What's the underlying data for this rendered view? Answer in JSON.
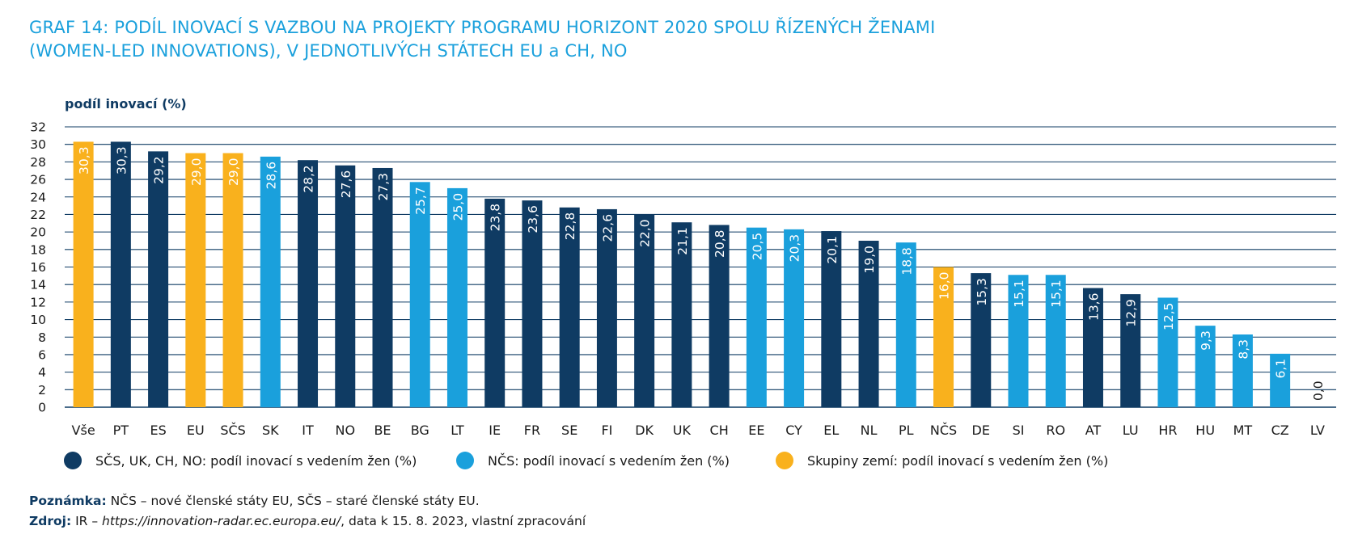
{
  "title_line1": "GRAF 14: PODÍL INOVACÍ S VAZBOU NA PROJEKTY PROGRAMU HORIZONT 2020 SPOLU ŘÍZENÝCH ŽENAMI",
  "title_line2": "(WOMEN-LED INNOVATIONS), V JEDNOTLIVÝCH STÁTECH EU a CH, NO",
  "colors": {
    "dark": "#0f3b63",
    "light": "#1aa0dc",
    "orange": "#f9b11d",
    "title": "#1aa0dc"
  },
  "chart_data": {
    "type": "bar",
    "ylabel": "podíl inovací (%)",
    "ylim": [
      0,
      32
    ],
    "ytick_step": 2,
    "grid": true,
    "legend_position": "bottom",
    "categories": [
      "Vše",
      "PT",
      "ES",
      "EU",
      "SČS",
      "SK",
      "IT",
      "NO",
      "BE",
      "BG",
      "LT",
      "IE",
      "FR",
      "SE",
      "FI",
      "DK",
      "UK",
      "CH",
      "EE",
      "CY",
      "EL",
      "NL",
      "PL",
      "NČS",
      "DE",
      "SI",
      "RO",
      "AT",
      "LU",
      "HR",
      "HU",
      "MT",
      "CZ",
      "LV"
    ],
    "values": [
      30.3,
      30.3,
      29.2,
      29.0,
      29.0,
      28.6,
      28.2,
      27.6,
      27.3,
      25.7,
      25.0,
      23.8,
      23.6,
      22.8,
      22.6,
      22.0,
      21.1,
      20.8,
      20.5,
      20.3,
      20.1,
      19.0,
      18.8,
      16.0,
      15.3,
      15.1,
      15.1,
      13.6,
      12.9,
      12.5,
      9.3,
      8.3,
      6.1,
      0.0
    ],
    "value_labels": [
      "30,3",
      "30,3",
      "29,2",
      "29,0",
      "29,0",
      "28,6",
      "28,2",
      "27,6",
      "27,3",
      "25,7",
      "25,0",
      "23,8",
      "23,6",
      "22,8",
      "22,6",
      "22,0",
      "21,1",
      "20,8",
      "20,5",
      "20,3",
      "20,1",
      "19,0",
      "18,8",
      "16,0",
      "15,3",
      "15,1",
      "15,1",
      "13,6",
      "12,9",
      "12,5",
      "9,3",
      "8,3",
      "6,1",
      "0,0"
    ],
    "groups": [
      "orange",
      "dark",
      "dark",
      "orange",
      "orange",
      "light",
      "dark",
      "dark",
      "dark",
      "light",
      "light",
      "dark",
      "dark",
      "dark",
      "dark",
      "dark",
      "dark",
      "dark",
      "light",
      "light",
      "dark",
      "dark",
      "light",
      "orange",
      "dark",
      "light",
      "light",
      "dark",
      "dark",
      "light",
      "light",
      "light",
      "light",
      "dark"
    ],
    "legend": [
      {
        "key": "dark",
        "label": "SČS, UK, CH, NO: podíl inovací s vedením žen (%)"
      },
      {
        "key": "light",
        "label": "NČS: podíl inovací s vedením žen (%)"
      },
      {
        "key": "orange",
        "label": "Skupiny zemí: podíl inovací s vedením žen (%)"
      }
    ]
  },
  "note_label": "Poznámka:",
  "note_text": " NČS – nové členské státy EU, SČS – staré členské státy EU.",
  "source_label": "Zdroj:",
  "source_text_pre": " IR – ",
  "source_link": "https://innovation-radar.ec.europa.eu/",
  "source_text_post": ", data k 15. 8. 2023, vlastní zpracování"
}
